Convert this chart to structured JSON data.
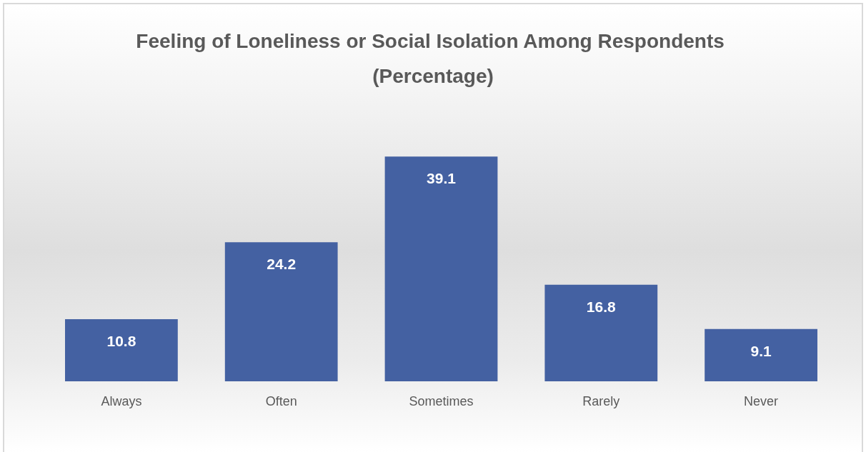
{
  "chart_data": {
    "type": "bar",
    "title": "Feeling of Loneliness or Social Isolation Among Respondents (Percentage)",
    "categories": [
      "Always",
      "Often",
      "Sometimes",
      "Rarely",
      "Never"
    ],
    "values": [
      10.8,
      24.2,
      39.1,
      16.8,
      9.1
    ],
    "color": "#4461a2",
    "data_labels": true,
    "tick_labels": "x",
    "grid": false
  }
}
